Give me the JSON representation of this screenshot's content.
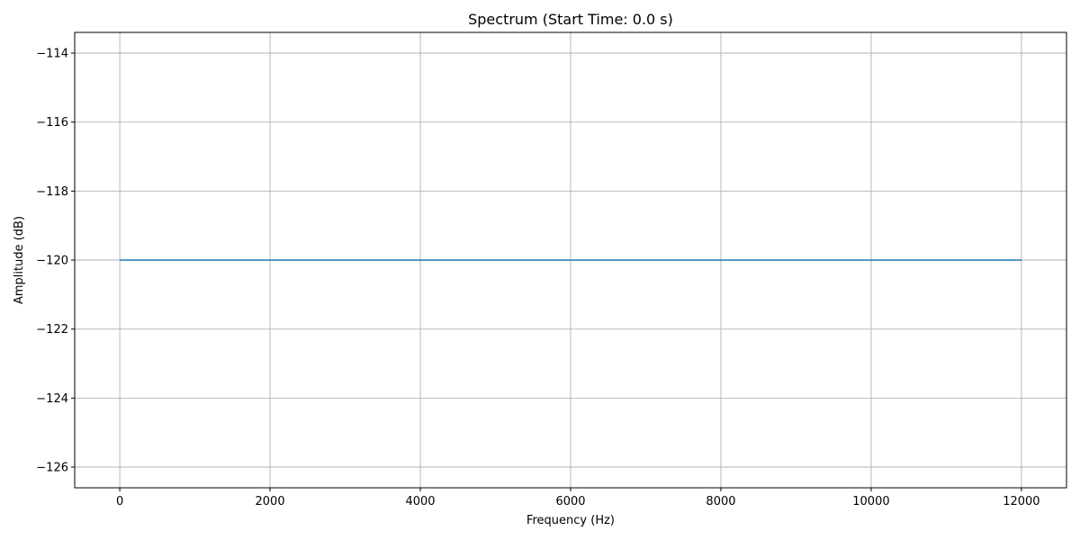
{
  "chart_data": {
    "type": "line",
    "title": "Spectrum (Start Time: 0.0 s)",
    "xlabel": "Frequency (Hz)",
    "ylabel": "Amplitude (dB)",
    "xlim": [
      -600,
      12600
    ],
    "ylim": [
      -126.6,
      -113.4
    ],
    "xticks": [
      0,
      2000,
      4000,
      6000,
      8000,
      10000,
      12000
    ],
    "xtick_labels": [
      "0",
      "2000",
      "4000",
      "6000",
      "8000",
      "10000",
      "12000"
    ],
    "yticks": [
      -126,
      -124,
      -122,
      -120,
      -118,
      -116,
      -114
    ],
    "ytick_labels": [
      "−126",
      "−124",
      "−122",
      "−120",
      "−118",
      "−116",
      "−114"
    ],
    "grid": true,
    "series": [
      {
        "color": "#1f77b4",
        "x": [
          0,
          12000
        ],
        "y": [
          -120,
          -120
        ]
      }
    ]
  }
}
